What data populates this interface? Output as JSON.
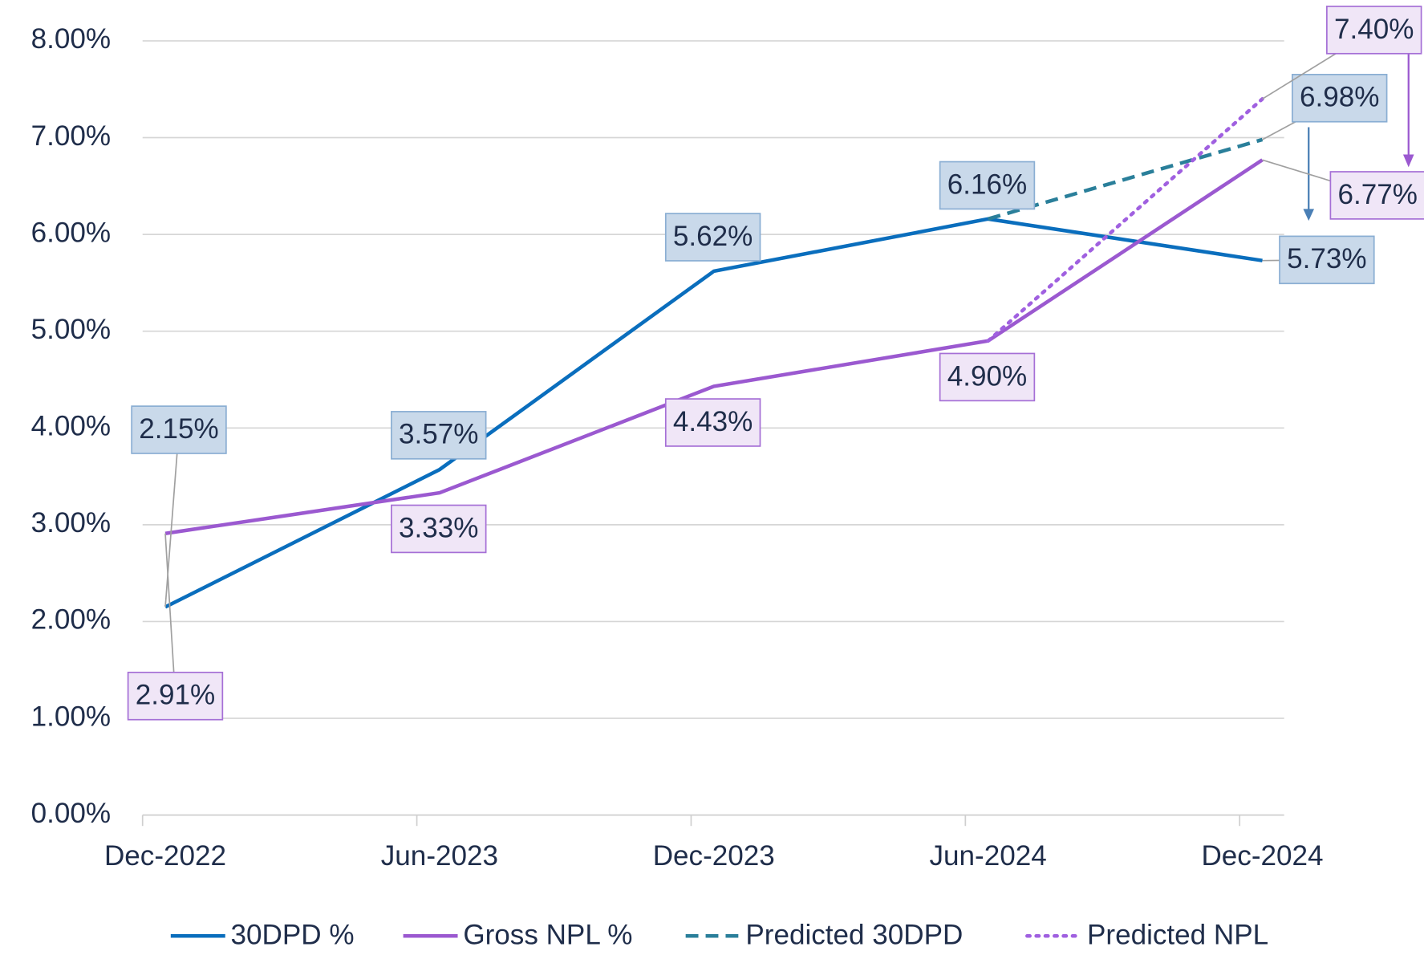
{
  "chart_data": {
    "type": "line",
    "categories": [
      "Dec-2022",
      "Jun-2023",
      "Dec-2023",
      "Jun-2024",
      "Dec-2024"
    ],
    "series": [
      {
        "name": "30DPD %",
        "color": "#0a6ebd",
        "style": "solid",
        "values": [
          2.15,
          3.57,
          5.62,
          6.16,
          5.73
        ],
        "value_labels": [
          "2.15%",
          "3.57%",
          "5.62%",
          "6.16%",
          "5.73%"
        ]
      },
      {
        "name": "Gross NPL %",
        "color": "#9b59d0",
        "style": "solid",
        "values": [
          2.91,
          3.33,
          4.43,
          4.9,
          6.77
        ],
        "value_labels": [
          "2.91%",
          "3.33%",
          "4.43%",
          "4.90%",
          "6.77%"
        ]
      },
      {
        "name": "Predicted 30DPD",
        "color": "#2a7f9a",
        "style": "dashed",
        "values": [
          null,
          null,
          null,
          6.16,
          6.98
        ],
        "value_labels": [
          null,
          null,
          null,
          null,
          "6.98%"
        ]
      },
      {
        "name": "Predicted NPL",
        "color": "#a060e0",
        "style": "dotted",
        "values": [
          null,
          null,
          null,
          4.9,
          7.4
        ],
        "value_labels": [
          null,
          null,
          null,
          null,
          "7.40%"
        ]
      }
    ],
    "ylim": [
      0,
      8
    ],
    "yticks": [
      {
        "value": 0,
        "label": "0.00%"
      },
      {
        "value": 1,
        "label": "1.00%"
      },
      {
        "value": 2,
        "label": "2.00%"
      },
      {
        "value": 3,
        "label": "3.00%"
      },
      {
        "value": 4,
        "label": "4.00%"
      },
      {
        "value": 5,
        "label": "5.00%"
      },
      {
        "value": 6,
        "label": "6.00%"
      },
      {
        "value": 7,
        "label": "7.00%"
      },
      {
        "value": 8,
        "label": "8.00%"
      }
    ],
    "grid": true,
    "legend": "bottom"
  }
}
